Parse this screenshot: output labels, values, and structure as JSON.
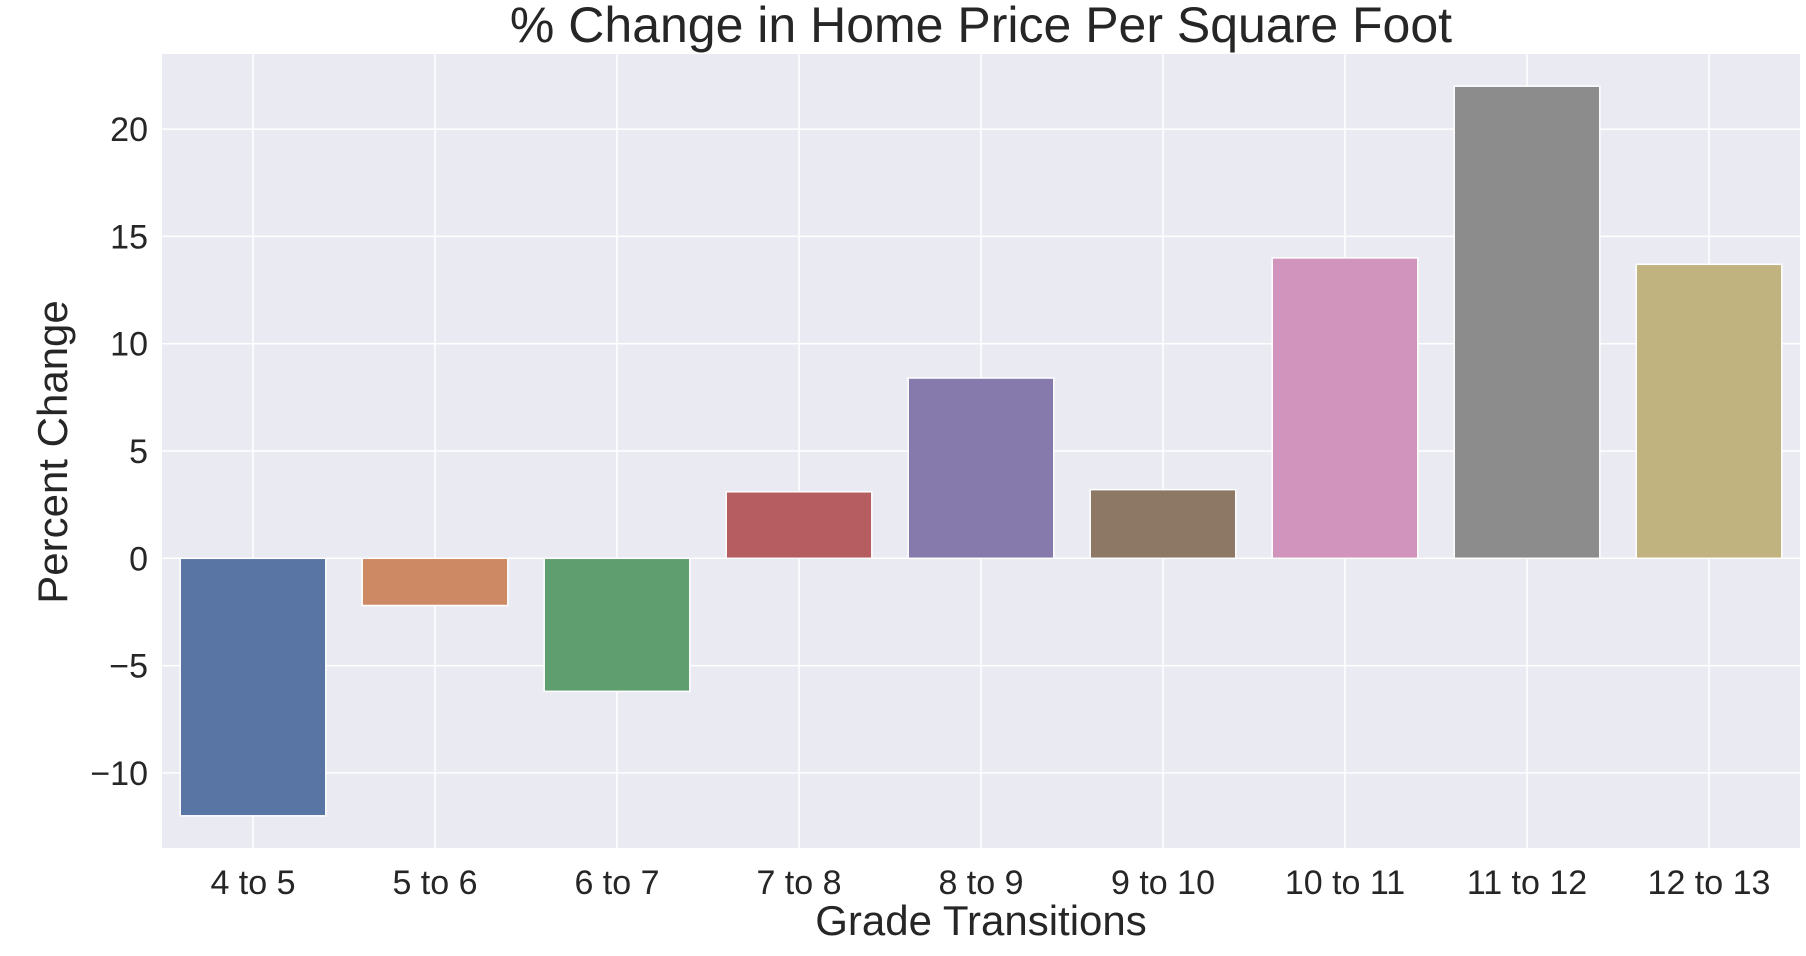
{
  "chart_data": {
    "type": "bar",
    "title": "% Change in Home Price Per Square Foot",
    "xlabel": "Grade Transitions",
    "ylabel": "Percent Change",
    "categories": [
      "4 to 5",
      "5 to 6",
      "6 to 7",
      "7 to 8",
      "8 to 9",
      "9 to 10",
      "10 to 11",
      "11 to 12",
      "12 to 13"
    ],
    "values": [
      -12.0,
      -2.2,
      -6.2,
      3.1,
      8.4,
      3.2,
      14.0,
      22.0,
      13.7
    ],
    "colors": [
      "#5975a4",
      "#cc8963",
      "#5f9e6e",
      "#b55d60",
      "#857aab",
      "#8d7866",
      "#d195bd",
      "#8c8c8c",
      "#c1b37f"
    ],
    "ylim": [
      -13.5,
      23.5
    ],
    "yticks": [
      -10,
      -5,
      0,
      5,
      10,
      15,
      20
    ],
    "ytick_labels": [
      "−10",
      "−5",
      "0",
      "5",
      "10",
      "15",
      "20"
    ],
    "grid": true,
    "background_color": "#eaeaf2",
    "grid_color": "#ffffff"
  }
}
